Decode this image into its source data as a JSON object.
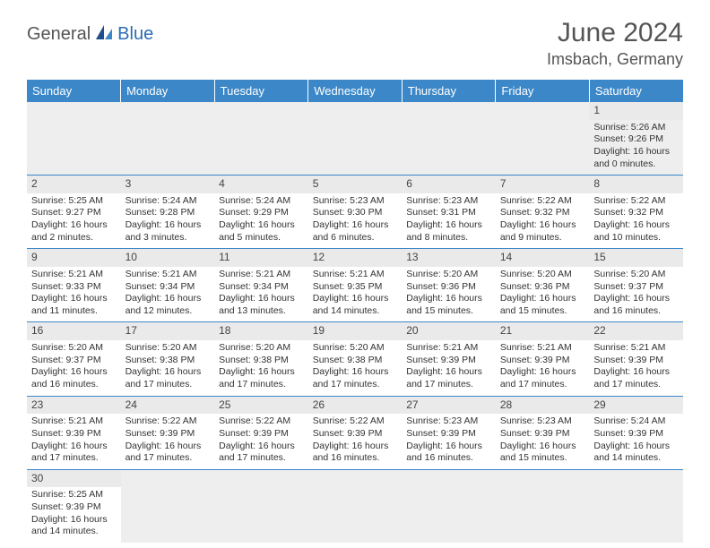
{
  "brand": {
    "part1": "General",
    "part2": "Blue"
  },
  "title": "June 2024",
  "location": "Imsbach, Germany",
  "colors": {
    "header_bg": "#3b87c8",
    "header_text": "#ffffff",
    "brand_accent": "#2a6db3",
    "brand_gray": "#555555",
    "cell_border": "#3b87c8",
    "daynum_bg": "#eaeaea",
    "empty_bg": "#eeeeee",
    "text": "#333333"
  },
  "typography": {
    "title_fontsize": 30,
    "location_fontsize": 18,
    "weekday_fontsize": 13,
    "cell_fontsize": 10.5,
    "daynum_fontsize": 12
  },
  "weekdays": [
    "Sunday",
    "Monday",
    "Tuesday",
    "Wednesday",
    "Thursday",
    "Friday",
    "Saturday"
  ],
  "weeks": [
    [
      null,
      null,
      null,
      null,
      null,
      null,
      {
        "day": "1",
        "sunrise": "Sunrise: 5:26 AM",
        "sunset": "Sunset: 9:26 PM",
        "daylight": "Daylight: 16 hours and 0 minutes."
      }
    ],
    [
      {
        "day": "2",
        "sunrise": "Sunrise: 5:25 AM",
        "sunset": "Sunset: 9:27 PM",
        "daylight": "Daylight: 16 hours and 2 minutes."
      },
      {
        "day": "3",
        "sunrise": "Sunrise: 5:24 AM",
        "sunset": "Sunset: 9:28 PM",
        "daylight": "Daylight: 16 hours and 3 minutes."
      },
      {
        "day": "4",
        "sunrise": "Sunrise: 5:24 AM",
        "sunset": "Sunset: 9:29 PM",
        "daylight": "Daylight: 16 hours and 5 minutes."
      },
      {
        "day": "5",
        "sunrise": "Sunrise: 5:23 AM",
        "sunset": "Sunset: 9:30 PM",
        "daylight": "Daylight: 16 hours and 6 minutes."
      },
      {
        "day": "6",
        "sunrise": "Sunrise: 5:23 AM",
        "sunset": "Sunset: 9:31 PM",
        "daylight": "Daylight: 16 hours and 8 minutes."
      },
      {
        "day": "7",
        "sunrise": "Sunrise: 5:22 AM",
        "sunset": "Sunset: 9:32 PM",
        "daylight": "Daylight: 16 hours and 9 minutes."
      },
      {
        "day": "8",
        "sunrise": "Sunrise: 5:22 AM",
        "sunset": "Sunset: 9:32 PM",
        "daylight": "Daylight: 16 hours and 10 minutes."
      }
    ],
    [
      {
        "day": "9",
        "sunrise": "Sunrise: 5:21 AM",
        "sunset": "Sunset: 9:33 PM",
        "daylight": "Daylight: 16 hours and 11 minutes."
      },
      {
        "day": "10",
        "sunrise": "Sunrise: 5:21 AM",
        "sunset": "Sunset: 9:34 PM",
        "daylight": "Daylight: 16 hours and 12 minutes."
      },
      {
        "day": "11",
        "sunrise": "Sunrise: 5:21 AM",
        "sunset": "Sunset: 9:34 PM",
        "daylight": "Daylight: 16 hours and 13 minutes."
      },
      {
        "day": "12",
        "sunrise": "Sunrise: 5:21 AM",
        "sunset": "Sunset: 9:35 PM",
        "daylight": "Daylight: 16 hours and 14 minutes."
      },
      {
        "day": "13",
        "sunrise": "Sunrise: 5:20 AM",
        "sunset": "Sunset: 9:36 PM",
        "daylight": "Daylight: 16 hours and 15 minutes."
      },
      {
        "day": "14",
        "sunrise": "Sunrise: 5:20 AM",
        "sunset": "Sunset: 9:36 PM",
        "daylight": "Daylight: 16 hours and 15 minutes."
      },
      {
        "day": "15",
        "sunrise": "Sunrise: 5:20 AM",
        "sunset": "Sunset: 9:37 PM",
        "daylight": "Daylight: 16 hours and 16 minutes."
      }
    ],
    [
      {
        "day": "16",
        "sunrise": "Sunrise: 5:20 AM",
        "sunset": "Sunset: 9:37 PM",
        "daylight": "Daylight: 16 hours and 16 minutes."
      },
      {
        "day": "17",
        "sunrise": "Sunrise: 5:20 AM",
        "sunset": "Sunset: 9:38 PM",
        "daylight": "Daylight: 16 hours and 17 minutes."
      },
      {
        "day": "18",
        "sunrise": "Sunrise: 5:20 AM",
        "sunset": "Sunset: 9:38 PM",
        "daylight": "Daylight: 16 hours and 17 minutes."
      },
      {
        "day": "19",
        "sunrise": "Sunrise: 5:20 AM",
        "sunset": "Sunset: 9:38 PM",
        "daylight": "Daylight: 16 hours and 17 minutes."
      },
      {
        "day": "20",
        "sunrise": "Sunrise: 5:21 AM",
        "sunset": "Sunset: 9:39 PM",
        "daylight": "Daylight: 16 hours and 17 minutes."
      },
      {
        "day": "21",
        "sunrise": "Sunrise: 5:21 AM",
        "sunset": "Sunset: 9:39 PM",
        "daylight": "Daylight: 16 hours and 17 minutes."
      },
      {
        "day": "22",
        "sunrise": "Sunrise: 5:21 AM",
        "sunset": "Sunset: 9:39 PM",
        "daylight": "Daylight: 16 hours and 17 minutes."
      }
    ],
    [
      {
        "day": "23",
        "sunrise": "Sunrise: 5:21 AM",
        "sunset": "Sunset: 9:39 PM",
        "daylight": "Daylight: 16 hours and 17 minutes."
      },
      {
        "day": "24",
        "sunrise": "Sunrise: 5:22 AM",
        "sunset": "Sunset: 9:39 PM",
        "daylight": "Daylight: 16 hours and 17 minutes."
      },
      {
        "day": "25",
        "sunrise": "Sunrise: 5:22 AM",
        "sunset": "Sunset: 9:39 PM",
        "daylight": "Daylight: 16 hours and 17 minutes."
      },
      {
        "day": "26",
        "sunrise": "Sunrise: 5:22 AM",
        "sunset": "Sunset: 9:39 PM",
        "daylight": "Daylight: 16 hours and 16 minutes."
      },
      {
        "day": "27",
        "sunrise": "Sunrise: 5:23 AM",
        "sunset": "Sunset: 9:39 PM",
        "daylight": "Daylight: 16 hours and 16 minutes."
      },
      {
        "day": "28",
        "sunrise": "Sunrise: 5:23 AM",
        "sunset": "Sunset: 9:39 PM",
        "daylight": "Daylight: 16 hours and 15 minutes."
      },
      {
        "day": "29",
        "sunrise": "Sunrise: 5:24 AM",
        "sunset": "Sunset: 9:39 PM",
        "daylight": "Daylight: 16 hours and 14 minutes."
      }
    ],
    [
      {
        "day": "30",
        "sunrise": "Sunrise: 5:25 AM",
        "sunset": "Sunset: 9:39 PM",
        "daylight": "Daylight: 16 hours and 14 minutes."
      },
      null,
      null,
      null,
      null,
      null,
      null
    ]
  ]
}
